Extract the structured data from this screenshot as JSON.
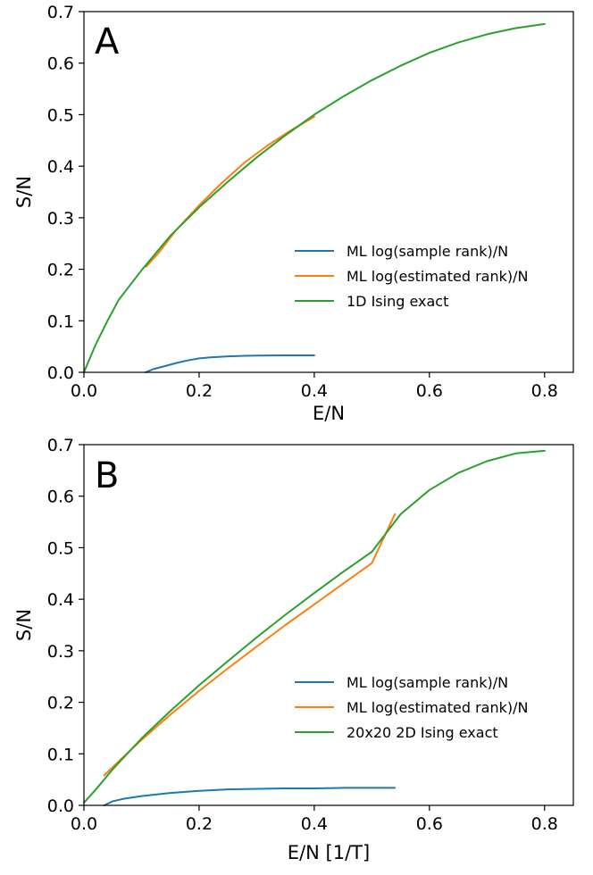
{
  "chart_data": [
    {
      "type": "line",
      "panel_label": "A",
      "xlabel": "E/N",
      "ylabel": "S/N",
      "xlim": [
        0.0,
        0.85
      ],
      "ylim": [
        0.0,
        0.7
      ],
      "xticks": [
        0.0,
        0.2,
        0.4,
        0.6,
        0.8
      ],
      "xtick_labels": [
        "0.0",
        "0.2",
        "0.4",
        "0.6",
        "0.8"
      ],
      "yticks": [
        0.0,
        0.1,
        0.2,
        0.3,
        0.4,
        0.5,
        0.6,
        0.7
      ],
      "ytick_labels": [
        "0.0",
        "0.1",
        "0.2",
        "0.3",
        "0.4",
        "0.5",
        "0.6",
        "0.7"
      ],
      "grid": false,
      "legend_position": "lower-right",
      "series": [
        {
          "name": "ML log(sample rank)/N",
          "color": "#1f77b4",
          "x": [
            0.107,
            0.12,
            0.14,
            0.16,
            0.18,
            0.2,
            0.22,
            0.25,
            0.28,
            0.3,
            0.35,
            0.4
          ],
          "y": [
            0.0,
            0.006,
            0.012,
            0.018,
            0.023,
            0.027,
            0.029,
            0.031,
            0.032,
            0.0325,
            0.033,
            0.033
          ]
        },
        {
          "name": "ML log(estimated rank)/N",
          "color": "#ff7f0e",
          "x": [
            0.108,
            0.13,
            0.16,
            0.2,
            0.24,
            0.28,
            0.32,
            0.36,
            0.4
          ],
          "y": [
            0.205,
            0.232,
            0.276,
            0.324,
            0.368,
            0.408,
            0.441,
            0.47,
            0.496
          ]
        },
        {
          "name": "1D Ising exact",
          "color": "#2ca02c",
          "x": [
            0.0,
            0.02,
            0.04,
            0.06,
            0.1,
            0.15,
            0.2,
            0.25,
            0.3,
            0.35,
            0.4,
            0.45,
            0.5,
            0.55,
            0.6,
            0.65,
            0.7,
            0.75,
            0.8
          ],
          "y": [
            0.0,
            0.053,
            0.098,
            0.14,
            0.198,
            0.265,
            0.32,
            0.37,
            0.417,
            0.46,
            0.5,
            0.535,
            0.567,
            0.595,
            0.62,
            0.64,
            0.656,
            0.668,
            0.676
          ]
        }
      ]
    },
    {
      "type": "line",
      "panel_label": "B",
      "xlabel": "E/N  [1/T]",
      "ylabel": "S/N",
      "xlim": [
        0.0,
        0.85
      ],
      "ylim": [
        0.0,
        0.7
      ],
      "xticks": [
        0.0,
        0.2,
        0.4,
        0.6,
        0.8
      ],
      "xtick_labels": [
        "0.0",
        "0.2",
        "0.4",
        "0.6",
        "0.8"
      ],
      "yticks": [
        0.0,
        0.1,
        0.2,
        0.3,
        0.4,
        0.5,
        0.6,
        0.7
      ],
      "ytick_labels": [
        "0.0",
        "0.1",
        "0.2",
        "0.3",
        "0.4",
        "0.5",
        "0.6",
        "0.7"
      ],
      "grid": false,
      "legend_position": "lower-right",
      "series": [
        {
          "name": "ML log(sample rank)/N",
          "color": "#1f77b4",
          "x": [
            0.035,
            0.05,
            0.07,
            0.1,
            0.15,
            0.2,
            0.25,
            0.3,
            0.35,
            0.4,
            0.45,
            0.5,
            0.54
          ],
          "y": [
            0.0,
            0.008,
            0.013,
            0.018,
            0.024,
            0.028,
            0.031,
            0.032,
            0.033,
            0.033,
            0.034,
            0.034,
            0.034
          ]
        },
        {
          "name": "ML log(estimated rank)/N",
          "color": "#ff7f0e",
          "x": [
            0.035,
            0.06,
            0.1,
            0.15,
            0.2,
            0.25,
            0.3,
            0.35,
            0.4,
            0.45,
            0.5,
            0.54
          ],
          "y": [
            0.058,
            0.085,
            0.127,
            0.176,
            0.222,
            0.266,
            0.308,
            0.35,
            0.39,
            0.43,
            0.47,
            0.565
          ]
        },
        {
          "name": "20x20 2D Ising exact",
          "color": "#2ca02c",
          "x": [
            0.0,
            0.02,
            0.05,
            0.1,
            0.15,
            0.2,
            0.25,
            0.3,
            0.35,
            0.4,
            0.45,
            0.5,
            0.55,
            0.6,
            0.65,
            0.7,
            0.75,
            0.8
          ],
          "y": [
            0.005,
            0.03,
            0.07,
            0.13,
            0.183,
            0.233,
            0.28,
            0.326,
            0.37,
            0.412,
            0.453,
            0.492,
            0.565,
            0.612,
            0.645,
            0.668,
            0.683,
            0.688
          ]
        }
      ]
    }
  ]
}
